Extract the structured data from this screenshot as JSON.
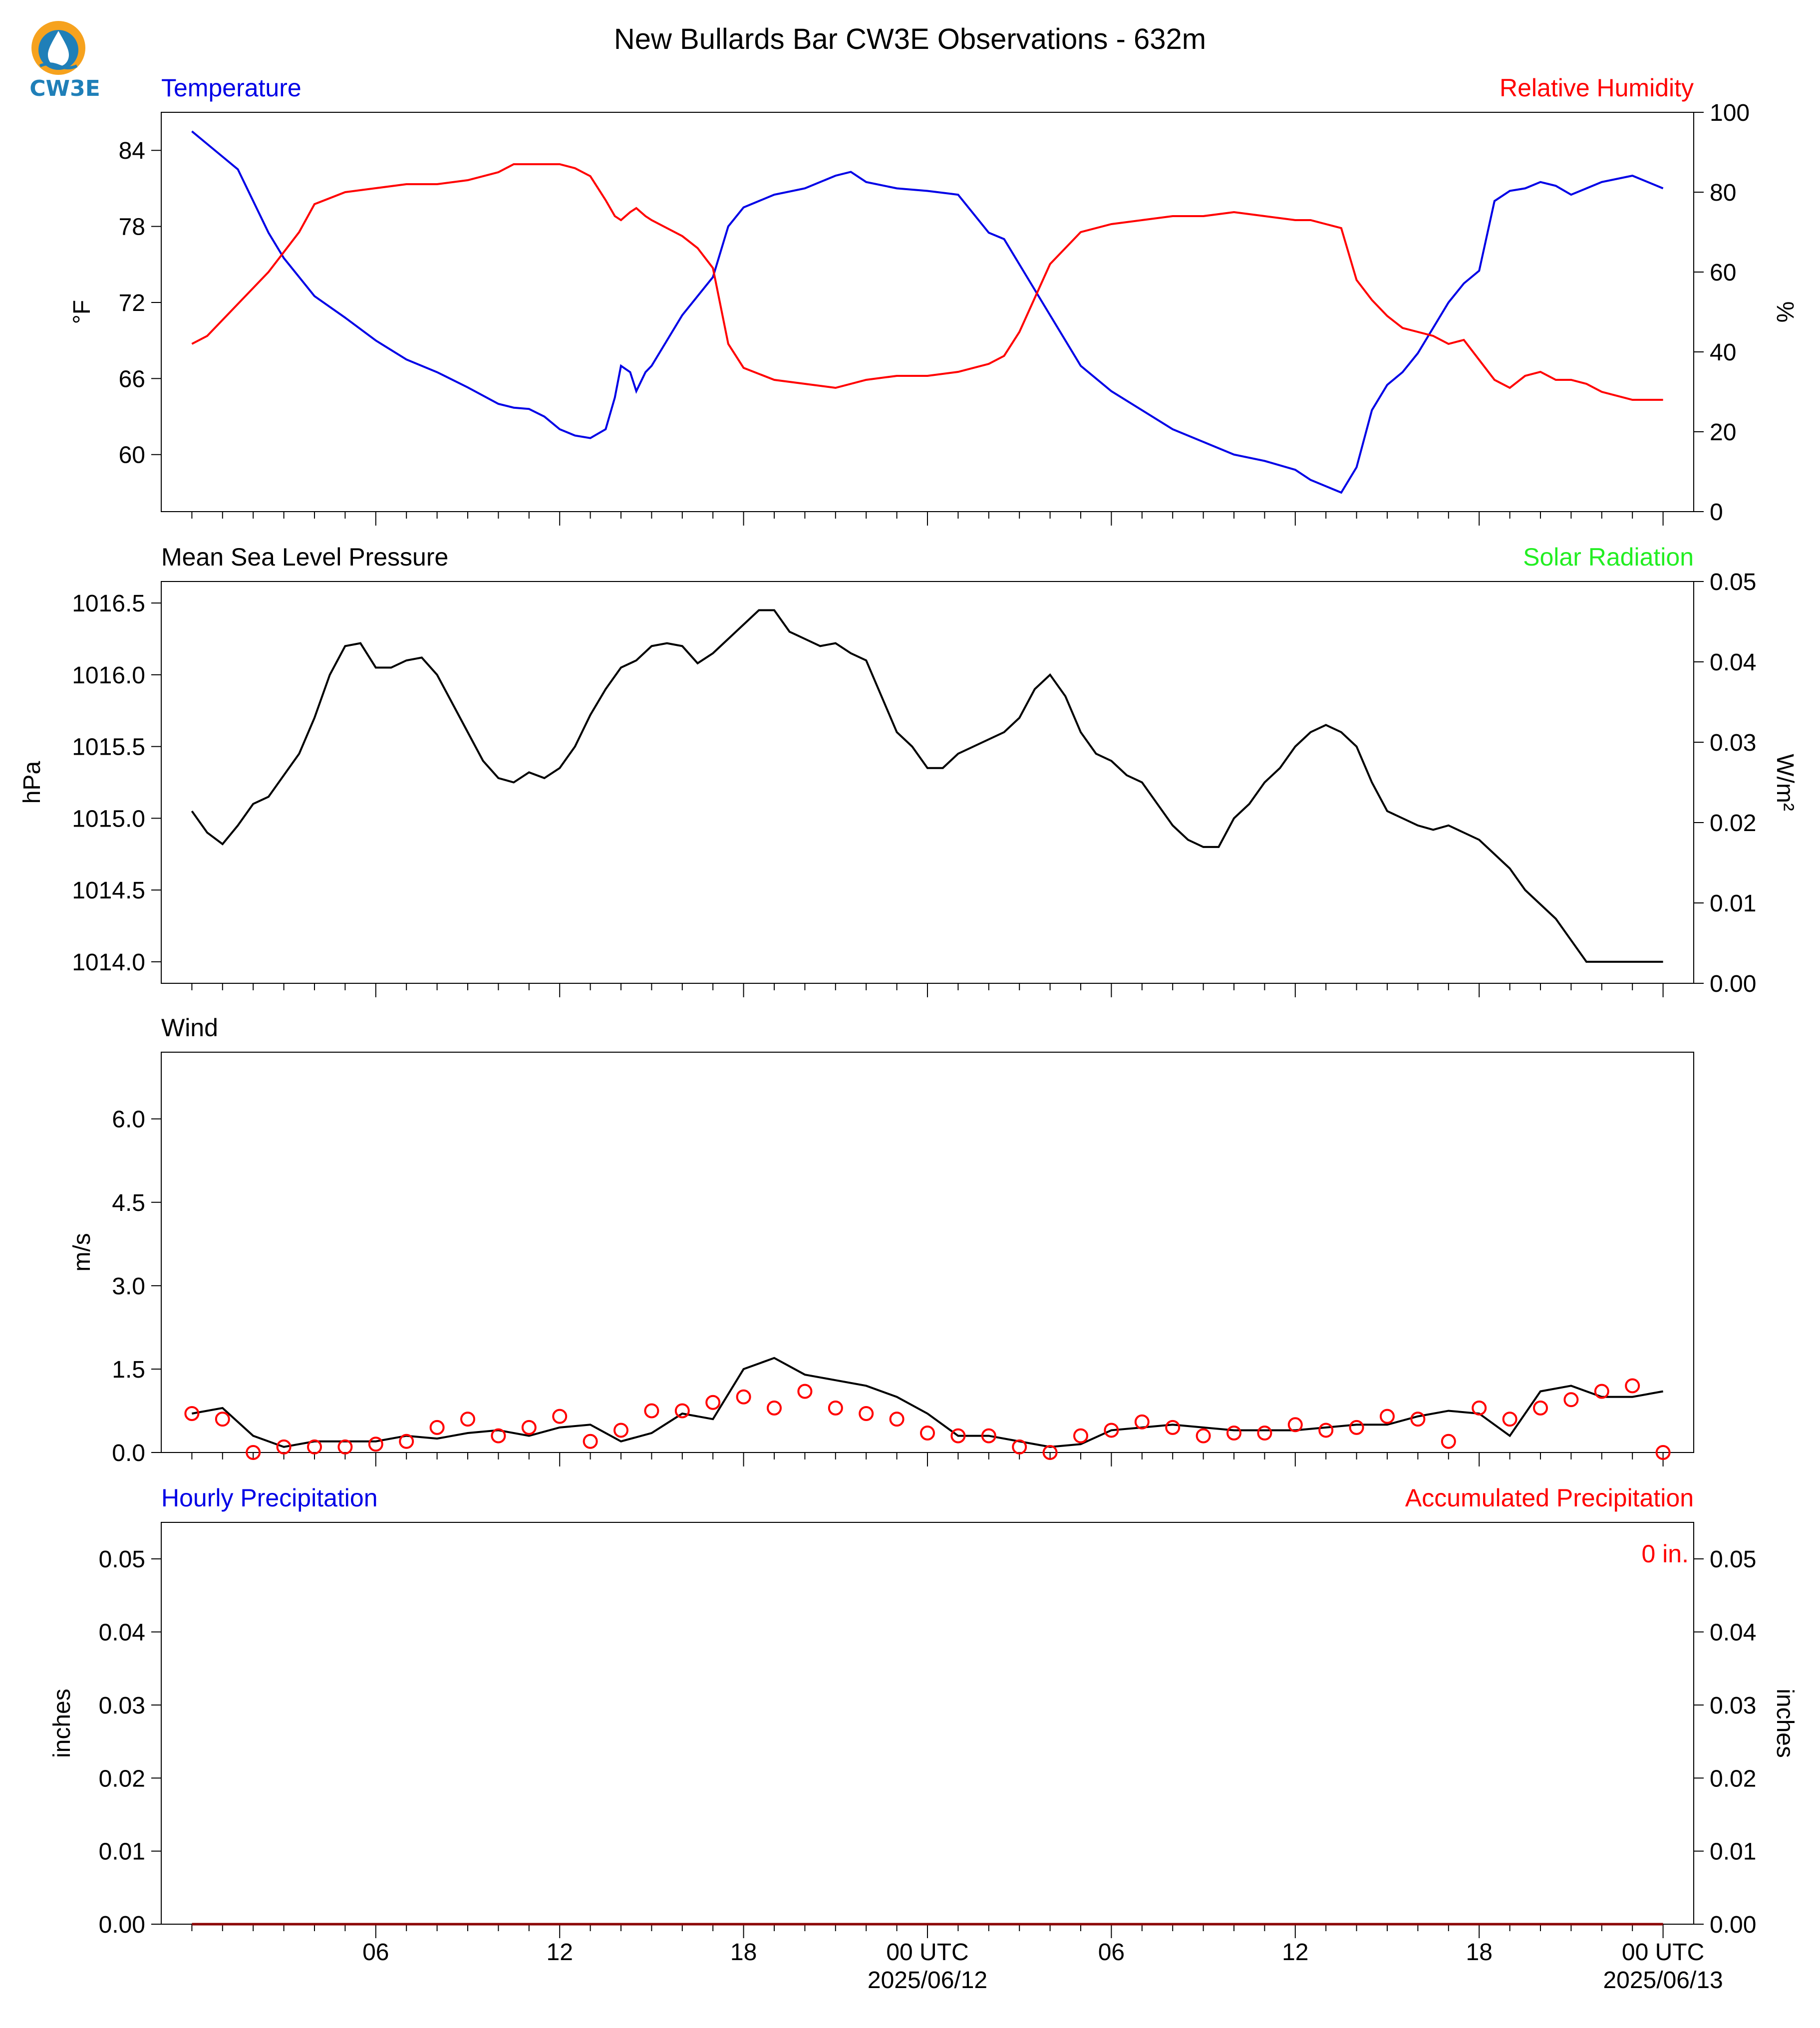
{
  "title": "New Bullards Bar CW3E Observations - 632m",
  "logo": {
    "text": "CW3E",
    "icon": "cw3e-water-drop-icon"
  },
  "colors": {
    "blue": "#0000e6",
    "red": "#ff0000",
    "green": "#22ee22",
    "black": "#000000"
  },
  "x_axis": {
    "tick_labels": [
      "06",
      "12",
      "18",
      "00 UTC",
      "06",
      "12",
      "18",
      "00 UTC"
    ],
    "tick_hours": [
      6,
      12,
      18,
      24,
      30,
      36,
      42,
      48
    ],
    "date_labels": [
      "2025/06/12",
      "2025/06/13"
    ],
    "date_label_hours": [
      24,
      48
    ],
    "range_hours": [
      -1,
      49
    ]
  },
  "panels": {
    "temp_rh": {
      "left_title": "Temperature",
      "right_title": "Relative Humidity",
      "ylabel_left": "°F",
      "ylabel_right": "%",
      "left_ticks": [
        "60",
        "66",
        "72",
        "78",
        "84"
      ],
      "right_ticks": [
        "0",
        "20",
        "40",
        "60",
        "80",
        "100"
      ]
    },
    "pressure": {
      "left_title": "Mean Sea Level Pressure",
      "right_title": "Solar Radiation",
      "ylabel_left": "hPa",
      "ylabel_right": "W/m²",
      "left_ticks": [
        "1014.0",
        "1014.5",
        "1015.0",
        "1015.5",
        "1016.0",
        "1016.5"
      ],
      "right_ticks": [
        "0.00",
        "0.01",
        "0.02",
        "0.03",
        "0.04",
        "0.05"
      ]
    },
    "wind": {
      "left_title": "Wind",
      "ylabel_left": "m/s",
      "left_ticks": [
        "0.0",
        "1.5",
        "3.0",
        "4.5",
        "6.0"
      ]
    },
    "precip": {
      "left_title": "Hourly Precipitation",
      "right_title": "Accumulated Precipitation",
      "ylabel_left": "inches",
      "ylabel_right": "inches",
      "left_ticks": [
        "0.00",
        "0.01",
        "0.02",
        "0.03",
        "0.04",
        "0.05"
      ],
      "right_ticks": [
        "0.00",
        "0.01",
        "0.02",
        "0.03",
        "0.04",
        "0.05"
      ],
      "total_label": "0 in."
    }
  },
  "chart_data": [
    {
      "type": "line",
      "title": "Temperature",
      "xlabel": "",
      "ylabel": "°F",
      "ylim": [
        55.5,
        87
      ],
      "x": [
        0,
        0.5,
        1,
        1.5,
        2,
        2.5,
        3,
        3.5,
        4,
        5,
        6,
        7,
        8,
        9,
        10,
        10.5,
        11,
        11.5,
        12,
        12.5,
        13,
        13.5,
        13.8,
        14,
        14.3,
        14.5,
        14.8,
        15,
        15.5,
        16,
        16.5,
        17,
        17.5,
        18,
        19,
        20,
        21,
        21.5,
        22,
        23,
        24,
        25,
        26,
        26.5,
        27,
        28,
        29,
        30,
        31,
        32,
        33,
        34,
        35,
        36,
        36.5,
        37,
        37.5,
        38,
        38.5,
        39,
        39.5,
        40,
        40.5,
        41,
        41.5,
        42,
        42.5,
        43,
        43.5,
        44,
        44.5,
        45,
        45.5,
        46,
        47,
        47.5,
        48
      ],
      "series": [
        {
          "name": "Temperature",
          "values": [
            85.5,
            84.5,
            83.5,
            82.5,
            80,
            77.5,
            75.5,
            74,
            72.5,
            70.8,
            69,
            67.5,
            66.5,
            65.3,
            64,
            63.7,
            63.6,
            63,
            62,
            61.5,
            61.3,
            62,
            64.5,
            67,
            66.5,
            65,
            66.5,
            67,
            69,
            71,
            72.5,
            74,
            78,
            79.5,
            80.5,
            81,
            82,
            82.3,
            81.5,
            81,
            80.8,
            80.5,
            77.5,
            77,
            75,
            71,
            67,
            65,
            63.5,
            62,
            61,
            60,
            59.5,
            58.8,
            58,
            57.5,
            57,
            59,
            63.5,
            65.5,
            66.5,
            68,
            70,
            72,
            73.5,
            74.5,
            80,
            80.8,
            81,
            81.5,
            81.2,
            80.5,
            81,
            81.5,
            82,
            81.5,
            81
          ]
        },
        {
          "name": "Relative Humidity",
          "axis": "right",
          "values": [
            42,
            44,
            48,
            52,
            56,
            60,
            65,
            70,
            77,
            80,
            81,
            82,
            82,
            83,
            85,
            87,
            87,
            87,
            87,
            86,
            84,
            78,
            74,
            73,
            75,
            76,
            74,
            73,
            71,
            69,
            66,
            61,
            42,
            36,
            33,
            32,
            31,
            32,
            33,
            34,
            34,
            35,
            37,
            39,
            45,
            62,
            70,
            72,
            73,
            74,
            74,
            75,
            74,
            73,
            73,
            72,
            71,
            58,
            53,
            49,
            46,
            45,
            44,
            42,
            43,
            38,
            33,
            31,
            34,
            35,
            33,
            33,
            32,
            30,
            28,
            28,
            28
          ]
        }
      ],
      "y_right": {
        "ylabel": "%",
        "ylim": [
          0,
          100
        ]
      }
    },
    {
      "type": "line",
      "title": "Mean Sea Level Pressure",
      "xlabel": "",
      "ylabel": "hPa",
      "ylim": [
        1013.85,
        1016.65
      ],
      "x": [
        0,
        0.5,
        1,
        1.5,
        2,
        2.5,
        3,
        3.5,
        4,
        4.5,
        5,
        5.5,
        6,
        6.5,
        7,
        7.5,
        8,
        8.5,
        9,
        9.5,
        10,
        10.5,
        11,
        11.5,
        12,
        12.5,
        13,
        13.5,
        14,
        14.5,
        15,
        15.5,
        16,
        16.5,
        17,
        17.5,
        18,
        18.5,
        19,
        19.5,
        20,
        20.5,
        21,
        21.5,
        22,
        22.5,
        23,
        23.5,
        24,
        24.5,
        25,
        25.5,
        26,
        26.5,
        27,
        27.5,
        28,
        28.5,
        29,
        29.5,
        30,
        30.5,
        31,
        31.5,
        32,
        32.5,
        33,
        33.5,
        34,
        34.5,
        35,
        35.5,
        36,
        36.5,
        37,
        37.5,
        38,
        38.5,
        39,
        39.5,
        40,
        40.5,
        41,
        41.5,
        42,
        42.5,
        43,
        43.5,
        44,
        44.5,
        45,
        45.5,
        46,
        46.5,
        47,
        47.5,
        48
      ],
      "series": [
        {
          "name": "Pressure",
          "values": [
            1015.05,
            1014.9,
            1014.82,
            1014.95,
            1015.1,
            1015.15,
            1015.3,
            1015.45,
            1015.7,
            1016.0,
            1016.2,
            1016.22,
            1016.05,
            1016.05,
            1016.1,
            1016.12,
            1016.0,
            1015.8,
            1015.6,
            1015.4,
            1015.28,
            1015.25,
            1015.32,
            1015.28,
            1015.35,
            1015.5,
            1015.72,
            1015.9,
            1016.05,
            1016.1,
            1016.2,
            1016.22,
            1016.2,
            1016.08,
            1016.15,
            1016.25,
            1016.35,
            1016.45,
            1016.45,
            1016.3,
            1016.25,
            1016.2,
            1016.22,
            1016.15,
            1016.1,
            1015.85,
            1015.6,
            1015.5,
            1015.35,
            1015.35,
            1015.45,
            1015.5,
            1015.55,
            1015.6,
            1015.7,
            1015.9,
            1016.0,
            1015.85,
            1015.6,
            1015.45,
            1015.4,
            1015.3,
            1015.25,
            1015.1,
            1014.95,
            1014.85,
            1014.8,
            1014.8,
            1015.0,
            1015.1,
            1015.25,
            1015.35,
            1015.5,
            1015.6,
            1015.65,
            1015.6,
            1015.5,
            1015.25,
            1015.05,
            1015.0,
            1014.95,
            1014.92,
            1014.95,
            1014.9,
            1014.85,
            1014.75,
            1014.65,
            1014.5,
            1014.4,
            1014.3,
            1014.15,
            1014.0,
            1014.0,
            1014.0,
            1014.0,
            1014.0,
            1014.0
          ]
        }
      ],
      "y_right": {
        "ylabel": "W/m²",
        "ylim": [
          0,
          0.05
        ],
        "note": "Solar Radiation series not drawn (no data)"
      }
    },
    {
      "type": "line",
      "title": "Wind",
      "xlabel": "",
      "ylabel": "m/s",
      "ylim": [
        0,
        7.2
      ],
      "x": [
        0,
        1,
        2,
        3,
        4,
        5,
        6,
        7,
        8,
        9,
        10,
        11,
        12,
        13,
        14,
        15,
        16,
        17,
        18,
        19,
        20,
        21,
        22,
        23,
        24,
        25,
        26,
        27,
        28,
        29,
        30,
        31,
        32,
        33,
        34,
        35,
        36,
        37,
        38,
        39,
        40,
        41,
        42,
        43,
        44,
        45,
        46,
        47,
        48
      ],
      "series": [
        {
          "name": "Wind speed",
          "values": [
            0.7,
            0.8,
            0.3,
            0.1,
            0.2,
            0.2,
            0.2,
            0.3,
            0.25,
            0.35,
            0.4,
            0.3,
            0.45,
            0.5,
            0.2,
            0.35,
            0.7,
            0.6,
            1.5,
            1.7,
            1.4,
            1.3,
            1.2,
            1.0,
            0.7,
            0.3,
            0.3,
            0.2,
            0.1,
            0.15,
            0.4,
            0.45,
            0.5,
            0.45,
            0.4,
            0.4,
            0.4,
            0.45,
            0.5,
            0.5,
            0.65,
            0.75,
            0.7,
            0.3,
            1.1,
            1.2,
            1.0,
            1.0,
            1.1
          ]
        },
        {
          "name": "Wind (hourly)",
          "marker": "circle",
          "values": [
            0.7,
            0.6,
            0.0,
            0.1,
            0.1,
            0.1,
            0.15,
            0.2,
            0.45,
            0.6,
            0.3,
            0.45,
            0.65,
            0.2,
            0.4,
            0.75,
            0.75,
            0.9,
            1.0,
            0.8,
            1.1,
            0.8,
            0.7,
            0.6,
            0.35,
            0.3,
            0.3,
            0.1,
            0.0,
            0.3,
            0.4,
            0.55,
            0.45,
            0.3,
            0.35,
            0.35,
            0.5,
            0.4,
            0.45,
            0.65,
            0.6,
            0.2,
            0.8,
            0.6,
            0.8,
            0.95,
            1.1,
            1.2,
            0.0
          ]
        }
      ]
    },
    {
      "type": "line",
      "title": "Hourly Precipitation",
      "xlabel": "",
      "ylabel": "inches",
      "ylim": [
        0,
        0.055
      ],
      "x": [
        0,
        48
      ],
      "series": [
        {
          "name": "Accumulated Precipitation",
          "values": [
            0,
            0
          ]
        }
      ],
      "y_right": {
        "ylabel": "inches",
        "ylim": [
          0,
          0.055
        ]
      }
    }
  ]
}
